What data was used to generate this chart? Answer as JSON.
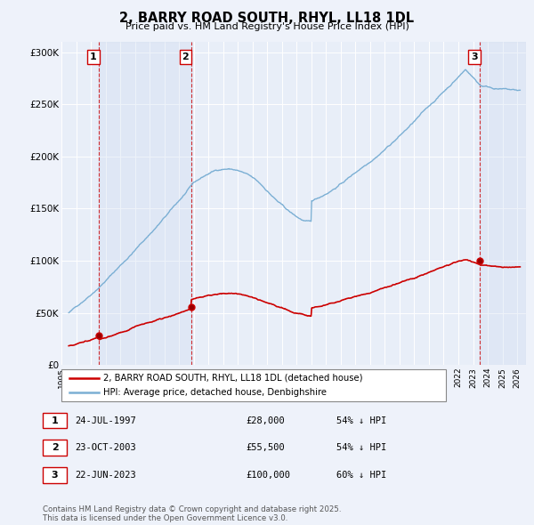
{
  "title": "2, BARRY ROAD SOUTH, RHYL, LL18 1DL",
  "subtitle": "Price paid vs. HM Land Registry's House Price Index (HPI)",
  "background_color": "#eef2fa",
  "plot_bg_color": "#e8eef8",
  "ylim": [
    0,
    310000
  ],
  "yticks": [
    0,
    50000,
    100000,
    150000,
    200000,
    250000,
    300000
  ],
  "ytick_labels": [
    "£0",
    "£50K",
    "£100K",
    "£150K",
    "£200K",
    "£250K",
    "£300K"
  ],
  "xstart_year": 1995.4,
  "xend_year": 2026.6,
  "sale_dates": [
    1997.56,
    2003.81,
    2023.47
  ],
  "sale_prices": [
    28000,
    55500,
    100000
  ],
  "sale_labels": [
    "1",
    "2",
    "3"
  ],
  "hpi_color": "#7bafd4",
  "sale_color": "#cc0000",
  "vline_color": "#cc0000",
  "shade_color": "#d0dcf0",
  "legend_entries": [
    "2, BARRY ROAD SOUTH, RHYL, LL18 1DL (detached house)",
    "HPI: Average price, detached house, Denbighshire"
  ],
  "table_data": [
    [
      "1",
      "24-JUL-1997",
      "£28,000",
      "54% ↓ HPI"
    ],
    [
      "2",
      "23-OCT-2003",
      "£55,500",
      "54% ↓ HPI"
    ],
    [
      "3",
      "22-JUN-2023",
      "£100,000",
      "60% ↓ HPI"
    ]
  ],
  "footnote": "Contains HM Land Registry data © Crown copyright and database right 2025.\nThis data is licensed under the Open Government Licence v3.0.",
  "xtick_years": [
    1995,
    1996,
    1997,
    1998,
    1999,
    2000,
    2001,
    2002,
    2003,
    2004,
    2005,
    2006,
    2007,
    2008,
    2009,
    2010,
    2011,
    2012,
    2013,
    2014,
    2015,
    2016,
    2017,
    2018,
    2019,
    2020,
    2021,
    2022,
    2023,
    2024,
    2025,
    2026
  ]
}
